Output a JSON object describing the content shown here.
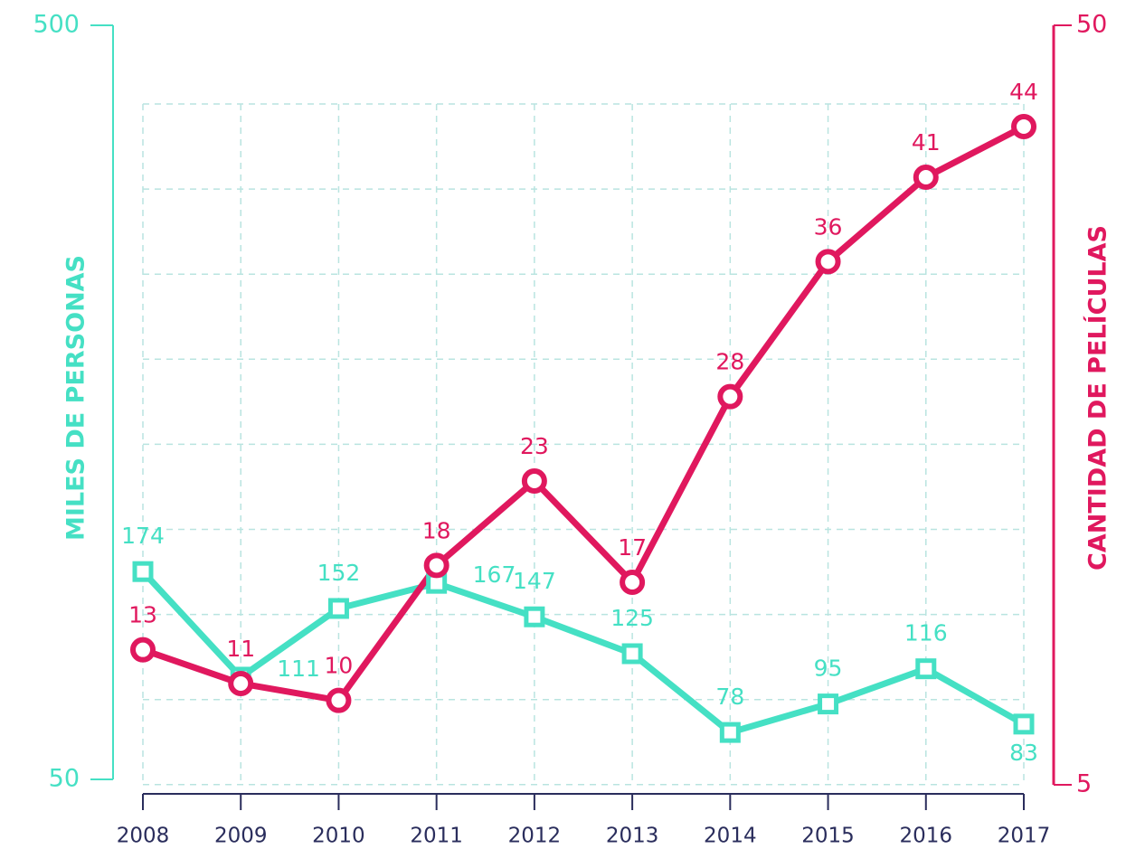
{
  "chart_data": {
    "type": "line",
    "y_label": "MILES DE PERSONAS",
    "y2_label": "CANTIDAD DE PELÍCULAS",
    "categories": [
      "2008",
      "2009",
      "2010",
      "2011",
      "2012",
      "2013",
      "2014",
      "2015",
      "2016",
      "2017"
    ],
    "series": [
      {
        "color": "#45e0c4",
        "values": [
          174,
          111,
          152,
          167,
          147,
          125,
          78,
          95,
          116,
          83
        ]
      },
      {
        "color": "#e0185e",
        "axis": "y2",
        "values": [
          13,
          11,
          10,
          18,
          23,
          17,
          28,
          36,
          41,
          44
        ]
      }
    ],
    "ylim": [
      50,
      500
    ],
    "yticks": [
      50,
      500
    ],
    "y2lim": [
      5,
      50
    ],
    "y2ticks": [
      5,
      50
    ],
    "grid": true
  }
}
